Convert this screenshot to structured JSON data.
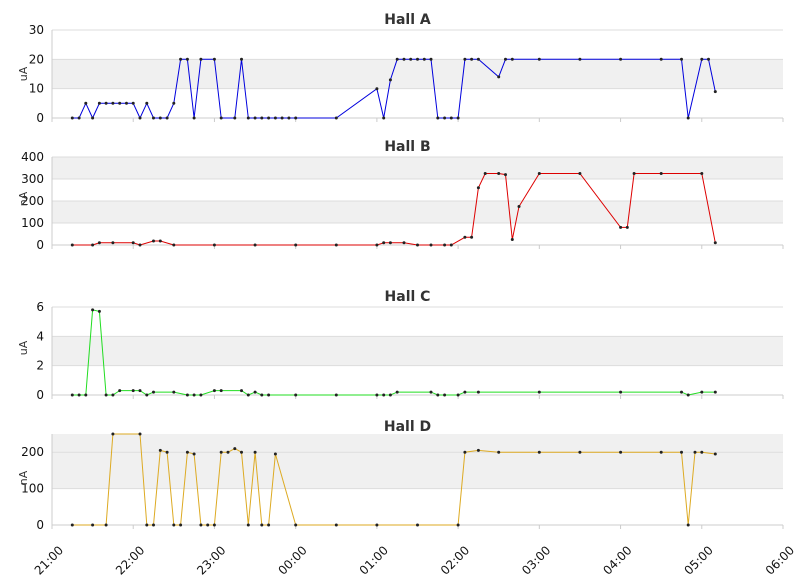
{
  "chart_data": [
    {
      "type": "line",
      "title": "Hall A",
      "ylabel": "uA",
      "ylim": [
        0,
        30
      ],
      "yticks": [
        "0",
        "10",
        "20",
        "30"
      ],
      "color": "#0000dd",
      "series": [
        {
          "x": [
            "21:15",
            "21:20",
            "21:25",
            "21:30",
            "21:35",
            "21:40",
            "21:45",
            "21:50",
            "21:55",
            "22:00",
            "22:05",
            "22:10",
            "22:15",
            "22:20",
            "22:25",
            "22:30",
            "22:35",
            "22:40",
            "22:45",
            "22:50",
            "23:00",
            "23:05",
            "23:15",
            "23:20",
            "23:25",
            "23:30",
            "23:35",
            "23:40",
            "23:45",
            "23:50",
            "23:55",
            "00:00",
            "00:30",
            "01:00",
            "01:05",
            "01:10",
            "01:15",
            "01:20",
            "01:25",
            "01:30",
            "01:35",
            "01:40",
            "01:45",
            "01:50",
            "01:55",
            "02:00",
            "02:05",
            "02:10",
            "02:15",
            "02:30",
            "02:35",
            "02:40",
            "03:00",
            "03:30",
            "04:00",
            "04:30",
            "04:45",
            "04:50",
            "05:00",
            "05:05",
            "05:10"
          ],
          "y": [
            0,
            0,
            5,
            0,
            5,
            5,
            5,
            5,
            5,
            5,
            0,
            5,
            0,
            0,
            0,
            5,
            20,
            20,
            0,
            20,
            20,
            0,
            0,
            20,
            0,
            0,
            0,
            0,
            0,
            0,
            0,
            0,
            0,
            10,
            0,
            13,
            20,
            20,
            20,
            20,
            20,
            20,
            0,
            0,
            0,
            0,
            20,
            20,
            20,
            14,
            20,
            20,
            20,
            20,
            20,
            20,
            20,
            0,
            20,
            20,
            9
          ]
        }
      ]
    },
    {
      "type": "line",
      "title": "Hall B",
      "ylabel": "nA",
      "ylim": [
        0,
        400
      ],
      "yticks": [
        "0",
        "100",
        "200",
        "300",
        "400"
      ],
      "color": "#dd0000",
      "series": [
        {
          "x": [
            "21:15",
            "21:30",
            "21:35",
            "21:45",
            "22:00",
            "22:05",
            "22:15",
            "22:20",
            "22:30",
            "23:00",
            "23:30",
            "00:00",
            "00:30",
            "01:00",
            "01:05",
            "01:10",
            "01:20",
            "01:30",
            "01:40",
            "01:50",
            "01:55",
            "02:05",
            "02:10",
            "02:15",
            "02:20",
            "02:30",
            "02:35",
            "02:40",
            "02:45",
            "03:00",
            "03:30",
            "04:00",
            "04:05",
            "04:10",
            "04:30",
            "05:00",
            "05:10"
          ],
          "y": [
            0,
            0,
            10,
            10,
            10,
            0,
            18,
            18,
            0,
            0,
            0,
            0,
            0,
            0,
            10,
            10,
            10,
            0,
            0,
            0,
            0,
            35,
            35,
            260,
            325,
            325,
            320,
            25,
            175,
            325,
            325,
            80,
            80,
            325,
            325,
            325,
            10
          ]
        }
      ]
    },
    {
      "type": "line",
      "title": "Hall C",
      "ylabel": "uA",
      "ylim": [
        0,
        6
      ],
      "yticks": [
        "0",
        "2",
        "4",
        "6"
      ],
      "color": "#22dd22",
      "series": [
        {
          "x": [
            "21:15",
            "21:20",
            "21:25",
            "21:30",
            "21:35",
            "21:40",
            "21:45",
            "21:50",
            "22:00",
            "22:05",
            "22:10",
            "22:15",
            "22:30",
            "22:40",
            "22:45",
            "22:50",
            "23:00",
            "23:05",
            "23:20",
            "23:25",
            "23:30",
            "23:35",
            "23:40",
            "00:00",
            "00:30",
            "01:00",
            "01:05",
            "01:10",
            "01:15",
            "01:40",
            "01:45",
            "01:50",
            "02:00",
            "02:05",
            "02:15",
            "03:00",
            "04:00",
            "04:45",
            "04:50",
            "05:00",
            "05:10"
          ],
          "y": [
            0,
            0,
            0,
            5.8,
            5.7,
            0,
            0,
            0.3,
            0.3,
            0.3,
            0,
            0.2,
            0.2,
            0,
            0,
            0,
            0.3,
            0.3,
            0.3,
            0,
            0.2,
            0,
            0,
            0,
            0,
            0,
            0,
            0,
            0.2,
            0.2,
            0,
            0,
            0,
            0.2,
            0.2,
            0.2,
            0.2,
            0.2,
            0,
            0.2,
            0.2
          ]
        }
      ]
    },
    {
      "type": "line",
      "title": "Hall D",
      "ylabel": "nA",
      "ylim": [
        0,
        250
      ],
      "yticks": [
        "0",
        "100",
        "200"
      ],
      "color": "#ddaa22",
      "series": [
        {
          "x": [
            "21:15",
            "21:30",
            "21:40",
            "21:45",
            "22:05",
            "22:10",
            "22:15",
            "22:20",
            "22:25",
            "22:30",
            "22:35",
            "22:40",
            "22:45",
            "22:50",
            "22:55",
            "23:00",
            "23:05",
            "23:10",
            "23:15",
            "23:20",
            "23:25",
            "23:30",
            "23:35",
            "23:40",
            "23:45",
            "00:00",
            "00:30",
            "01:00",
            "01:30",
            "02:00",
            "02:05",
            "02:15",
            "02:30",
            "03:00",
            "03:30",
            "04:00",
            "04:30",
            "04:45",
            "04:50",
            "04:55",
            "05:00",
            "05:10"
          ],
          "y": [
            0,
            0,
            0,
            280,
            280,
            0,
            0,
            205,
            200,
            0,
            0,
            200,
            195,
            0,
            0,
            0,
            200,
            200,
            210,
            200,
            0,
            200,
            0,
            0,
            195,
            0,
            0,
            0,
            0,
            0,
            200,
            205,
            200,
            200,
            200,
            200,
            200,
            200,
            0,
            200,
            200,
            195
          ]
        }
      ]
    }
  ],
  "x_axis": {
    "min": "21:00",
    "max": "06:00",
    "ticks": [
      "21:00",
      "22:00",
      "23:00",
      "00:00",
      "01:00",
      "02:00",
      "03:00",
      "04:00",
      "05:00",
      "06:00"
    ]
  }
}
